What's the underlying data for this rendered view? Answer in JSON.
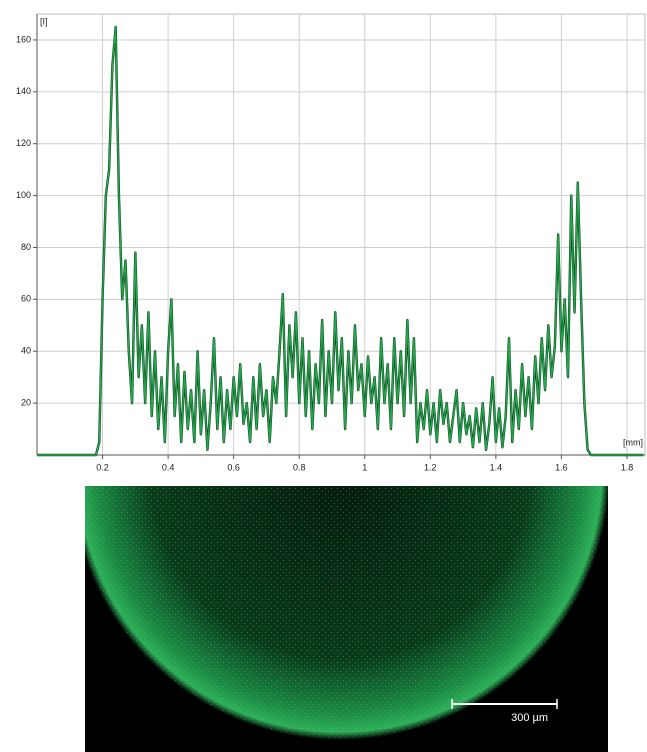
{
  "chart_data": {
    "type": "line",
    "y_label": "[I]",
    "x_label": "[mm]",
    "xlim": [
      0,
      1.855
    ],
    "ylim": [
      0,
      170
    ],
    "xticks": [
      0.2,
      0.4,
      0.6,
      0.8,
      1,
      1.2,
      1.4,
      1.6,
      1.8
    ],
    "yticks": [
      20,
      40,
      60,
      80,
      100,
      120,
      140,
      160
    ],
    "grid": true,
    "series": [
      {
        "color": "#22a84c",
        "x": [
          0,
          0.18,
          0.19,
          0.2,
          0.21,
          0.22,
          0.23,
          0.24,
          0.25,
          0.26,
          0.27,
          0.28,
          0.29,
          0.3,
          0.31,
          0.32,
          0.33,
          0.34,
          0.35,
          0.36,
          0.37,
          0.38,
          0.39,
          0.4,
          0.41,
          0.42,
          0.43,
          0.44,
          0.45,
          0.46,
          0.47,
          0.48,
          0.49,
          0.5,
          0.51,
          0.52,
          0.53,
          0.54,
          0.55,
          0.56,
          0.57,
          0.58,
          0.59,
          0.6,
          0.61,
          0.62,
          0.63,
          0.64,
          0.65,
          0.66,
          0.67,
          0.68,
          0.69,
          0.7,
          0.71,
          0.72,
          0.73,
          0.74,
          0.75,
          0.76,
          0.77,
          0.78,
          0.79,
          0.8,
          0.81,
          0.82,
          0.83,
          0.84,
          0.85,
          0.86,
          0.87,
          0.88,
          0.89,
          0.9,
          0.91,
          0.92,
          0.93,
          0.94,
          0.95,
          0.96,
          0.97,
          0.98,
          0.99,
          1.0,
          1.01,
          1.02,
          1.03,
          1.04,
          1.05,
          1.06,
          1.07,
          1.08,
          1.09,
          1.1,
          1.11,
          1.12,
          1.13,
          1.14,
          1.15,
          1.16,
          1.17,
          1.18,
          1.19,
          1.2,
          1.21,
          1.22,
          1.23,
          1.24,
          1.25,
          1.26,
          1.27,
          1.28,
          1.29,
          1.3,
          1.31,
          1.32,
          1.33,
          1.34,
          1.35,
          1.36,
          1.37,
          1.38,
          1.39,
          1.4,
          1.41,
          1.42,
          1.43,
          1.44,
          1.45,
          1.46,
          1.47,
          1.48,
          1.49,
          1.5,
          1.51,
          1.52,
          1.53,
          1.54,
          1.55,
          1.56,
          1.57,
          1.58,
          1.59,
          1.6,
          1.61,
          1.62,
          1.63,
          1.64,
          1.65,
          1.66,
          1.67,
          1.68,
          1.69,
          1.7,
          1.85
        ],
        "values": [
          0,
          0,
          5,
          60,
          100,
          110,
          150,
          165,
          100,
          60,
          75,
          40,
          20,
          78,
          30,
          50,
          20,
          55,
          15,
          40,
          10,
          30,
          5,
          40,
          60,
          15,
          35,
          5,
          32,
          10,
          25,
          5,
          40,
          8,
          25,
          2,
          20,
          45,
          10,
          30,
          5,
          25,
          10,
          30,
          15,
          35,
          12,
          20,
          5,
          30,
          10,
          35,
          15,
          25,
          5,
          30,
          20,
          40,
          62,
          15,
          50,
          30,
          55,
          20,
          45,
          15,
          40,
          10,
          35,
          20,
          52,
          15,
          40,
          20,
          55,
          25,
          45,
          10,
          40,
          20,
          50,
          25,
          35,
          15,
          38,
          20,
          30,
          10,
          45,
          20,
          35,
          10,
          45,
          20,
          40,
          15,
          52,
          20,
          45,
          5,
          20,
          10,
          25,
          8,
          20,
          5,
          25,
          12,
          20,
          5,
          15,
          25,
          5,
          20,
          8,
          15,
          3,
          18,
          5,
          20,
          2,
          12,
          30,
          5,
          18,
          3,
          15,
          45,
          5,
          25,
          10,
          35,
          15,
          30,
          10,
          38,
          20,
          45,
          25,
          50,
          30,
          42,
          85,
          40,
          60,
          30,
          100,
          55,
          105,
          60,
          20,
          2,
          0,
          0,
          0
        ]
      }
    ]
  },
  "image": {
    "scale_label": "300 µm"
  }
}
